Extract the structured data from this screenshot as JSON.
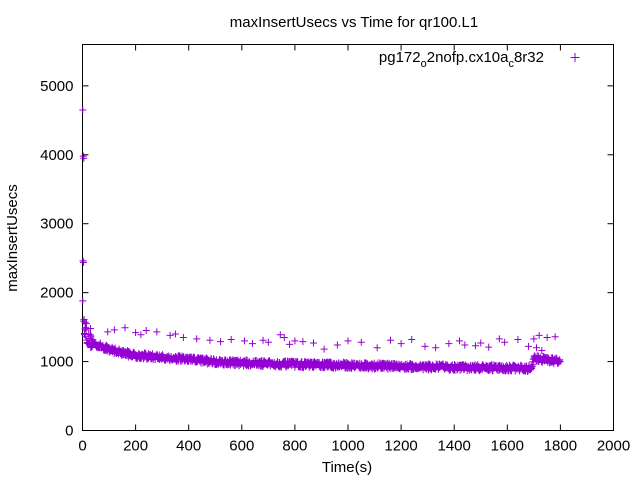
{
  "chart_data": {
    "type": "scatter",
    "title": "maxInsertUsecs vs Time for qr100.L1",
    "xlabel": "Time(s)",
    "ylabel": "maxInsertUsecs",
    "xlim": [
      0,
      2000
    ],
    "ylim": [
      0,
      5600
    ],
    "xticks": [
      "0",
      "200",
      "400",
      "600",
      "800",
      "1000",
      "1200",
      "1400",
      "1600",
      "1800",
      "2000"
    ],
    "yticks": [
      "0",
      "1000",
      "2000",
      "3000",
      "4000",
      "5000"
    ],
    "grid": false,
    "legend_position": "top-right",
    "marker": "+",
    "series": [
      {
        "name_parts": [
          "pg172",
          "o",
          "2nofp.cx10a",
          "c",
          "8r32"
        ],
        "color": "#9400d3",
        "trend": [
          [
            5,
            1520
          ],
          [
            20,
            1320
          ],
          [
            50,
            1250
          ],
          [
            100,
            1180
          ],
          [
            150,
            1130
          ],
          [
            200,
            1090
          ],
          [
            300,
            1060
          ],
          [
            400,
            1030
          ],
          [
            500,
            1000
          ],
          [
            600,
            980
          ],
          [
            800,
            960
          ],
          [
            1000,
            945
          ],
          [
            1200,
            930
          ],
          [
            1400,
            915
          ],
          [
            1600,
            905
          ],
          [
            1690,
            900
          ],
          [
            1700,
            1050
          ],
          [
            1800,
            1000
          ]
        ],
        "spread": 45,
        "outliers": [
          [
            1,
            4650
          ],
          [
            3,
            3980
          ],
          [
            5,
            3950
          ],
          [
            2,
            2460
          ],
          [
            4,
            2440
          ],
          [
            1,
            1880
          ],
          [
            6,
            1610
          ],
          [
            10,
            1570
          ],
          [
            15,
            1550
          ],
          [
            30,
            1480
          ],
          [
            95,
            1430
          ],
          [
            120,
            1460
          ],
          [
            160,
            1490
          ],
          [
            200,
            1420
          ],
          [
            220,
            1390
          ],
          [
            240,
            1450
          ],
          [
            280,
            1430
          ],
          [
            330,
            1380
          ],
          [
            350,
            1400
          ],
          [
            380,
            1350
          ],
          [
            430,
            1330
          ],
          [
            480,
            1310
          ],
          [
            520,
            1290
          ],
          [
            560,
            1320
          ],
          [
            610,
            1300
          ],
          [
            640,
            1260
          ],
          [
            680,
            1310
          ],
          [
            700,
            1280
          ],
          [
            745,
            1390
          ],
          [
            760,
            1350
          ],
          [
            780,
            1250
          ],
          [
            800,
            1300
          ],
          [
            830,
            1290
          ],
          [
            870,
            1270
          ],
          [
            910,
            1180
          ],
          [
            960,
            1240
          ],
          [
            1000,
            1300
          ],
          [
            1050,
            1280
          ],
          [
            1110,
            1200
          ],
          [
            1160,
            1310
          ],
          [
            1200,
            1260
          ],
          [
            1240,
            1320
          ],
          [
            1290,
            1220
          ],
          [
            1330,
            1200
          ],
          [
            1380,
            1260
          ],
          [
            1420,
            1300
          ],
          [
            1440,
            1240
          ],
          [
            1480,
            1230
          ],
          [
            1500,
            1270
          ],
          [
            1530,
            1210
          ],
          [
            1570,
            1330
          ],
          [
            1590,
            1280
          ],
          [
            1640,
            1320
          ],
          [
            1680,
            1220
          ],
          [
            1700,
            1330
          ],
          [
            1720,
            1380
          ],
          [
            1750,
            1350
          ],
          [
            1780,
            1360
          ],
          [
            1710,
            1200
          ],
          [
            1730,
            1160
          ]
        ]
      }
    ]
  }
}
